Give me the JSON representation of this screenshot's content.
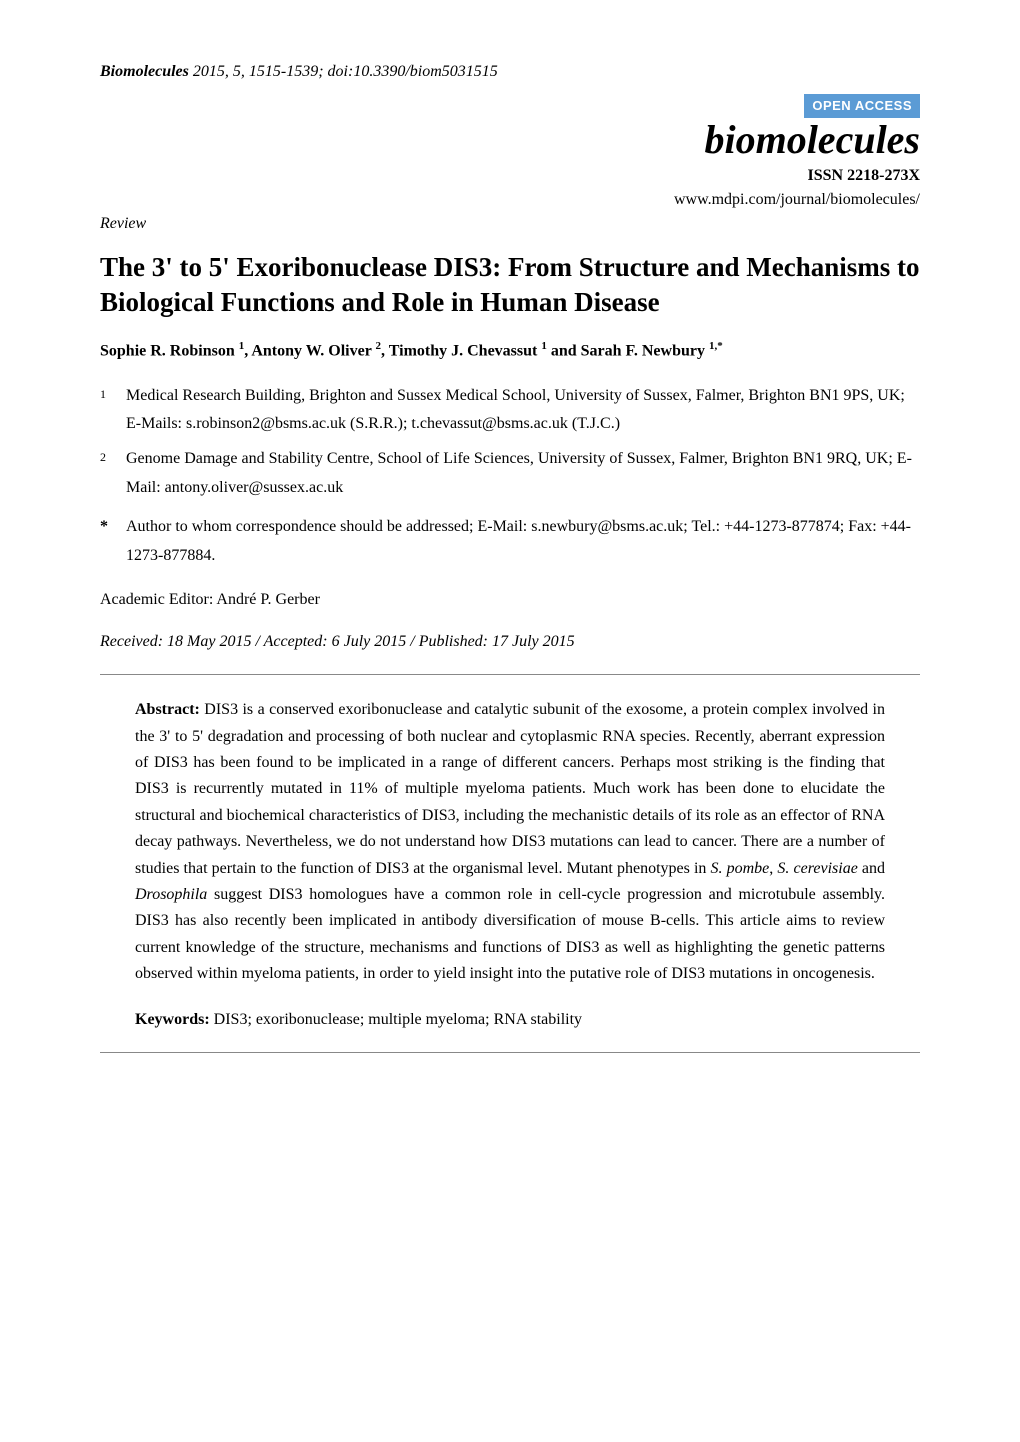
{
  "citation": {
    "journal": "Biomolecules",
    "year_vol_pages_doi": " 2015, 5, 1515-1539; doi:10.3390/biom5031515"
  },
  "open_access": "OPEN ACCESS",
  "journal_display": "biomolecules",
  "issn": "ISSN 2218-273X",
  "journal_url": "www.mdpi.com/journal/biomolecules/",
  "article_type": "Review",
  "title": "The 3' to 5' Exoribonuclease DIS3: From Structure and Mechanisms to Biological Functions and Role in Human Disease",
  "authors_html_parts": {
    "a1_name": "Sophie R. Robinson ",
    "a1_sup": "1",
    "sep1": ", ",
    "a2_name": "Antony W. Oliver ",
    "a2_sup": "2",
    "sep2": ", ",
    "a3_name": "Timothy J. Chevassut ",
    "a3_sup": "1",
    "sep3": " and ",
    "a4_name": "Sarah F. Newbury ",
    "a4_sup": "1,*"
  },
  "affiliations": [
    {
      "num": "1",
      "text": "Medical Research Building, Brighton and Sussex Medical School, University of Sussex, Falmer, Brighton BN1 9PS, UK; E-Mails: s.robinson2@bsms.ac.uk (S.R.R.); t.chevassut@bsms.ac.uk (T.J.C.)"
    },
    {
      "num": "2",
      "text": "Genome Damage and Stability Centre, School of Life Sciences, University of Sussex, Falmer, Brighton BN1 9RQ, UK; E-Mail: antony.oliver@sussex.ac.uk"
    }
  ],
  "correspondence": {
    "star": "*",
    "text": "Author to whom correspondence should be addressed; E-Mail: s.newbury@bsms.ac.uk; Tel.: +44-1273-877874; Fax: +44-1273-877884."
  },
  "editor": "Academic Editor: André P. Gerber",
  "dates": "Received: 18 May 2015 / Accepted: 6 July 2015 / Published: 17 July 2015",
  "abstract": {
    "label": "Abstract:",
    "p1": " DIS3 is a conserved exoribonuclease and catalytic subunit of the exosome, a protein complex involved in the 3' to 5' degradation and processing of both nuclear and cytoplasmic RNA species. Recently, aberrant expression of DIS3 has been found to be implicated in a range of different cancers. Perhaps most striking is the finding that DIS3 is recurrently mutated in 11% of multiple myeloma patients. Much work has been done to elucidate the structural and biochemical characteristics of DIS3, including the mechanistic details of its role as an effector of RNA decay pathways. Nevertheless, we do not understand how DIS3 mutations can lead to cancer. There are a number of studies that pertain to the function of DIS3 at the organismal level. Mutant phenotypes in ",
    "it1": "S. pombe",
    "p2": ", ",
    "it2": "S. cerevisiae",
    "p3": " and ",
    "it3": "Drosophila",
    "p4": " suggest DIS3 homologues have a common role in cell-cycle progression and microtubule assembly. DIS3 has also recently been implicated in antibody diversification of mouse B-cells. This article aims to review current knowledge of the structure, mechanisms and functions of DIS3 as well as highlighting the genetic patterns observed within myeloma patients, in order to yield insight into the putative role of DIS3 mutations in oncogenesis."
  },
  "keywords": {
    "label": "Keywords:",
    "text": " DIS3; exoribonuclease; multiple myeloma; RNA stability"
  },
  "colors": {
    "open_access_bg": "#5b9bd5",
    "open_access_fg": "#ffffff",
    "text": "#000000",
    "hr": "#888888",
    "background": "#ffffff"
  },
  "typography": {
    "body_font": "Times New Roman",
    "body_size_pt": 12,
    "title_size_pt": 20,
    "journal_title_size_pt": 30,
    "open_access_font": "Arial"
  }
}
